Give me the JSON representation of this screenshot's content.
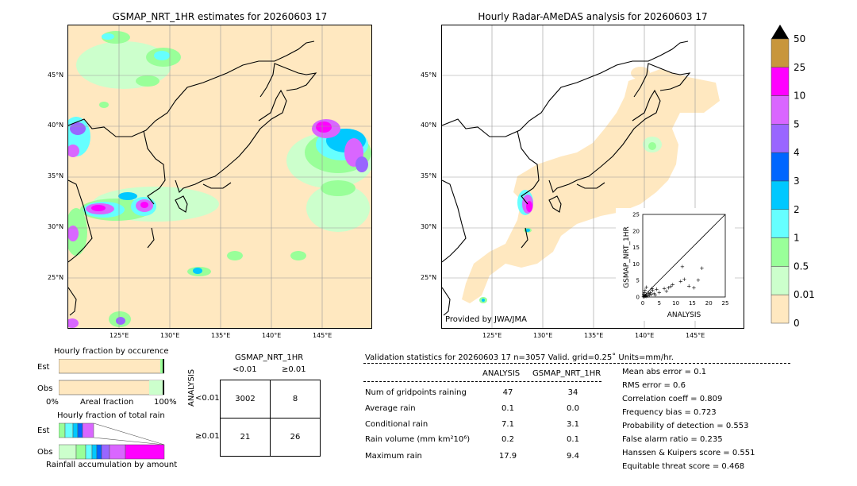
{
  "left_map": {
    "title": "GSMAP_NRT_1HR estimates for 20260603 17",
    "lat_labels": [
      "45°N",
      "40°N",
      "35°N",
      "30°N",
      "25°N"
    ],
    "lon_labels": [
      "125°E",
      "130°E",
      "135°E",
      "140°E",
      "145°E"
    ]
  },
  "right_map": {
    "title": "Hourly Radar-AMeDAS analysis for 20260603 17",
    "lat_labels": [
      "45°N",
      "40°N",
      "35°N",
      "30°N",
      "25°N"
    ],
    "lon_labels": [
      "125°E",
      "130°E",
      "135°E",
      "140°E",
      "145°E"
    ],
    "credit": "Provided by JWA/JMA"
  },
  "colorbar": {
    "labels": [
      "50",
      "25",
      "10",
      "5",
      "4",
      "3",
      "2",
      "1",
      "0.5",
      "0.01",
      "0"
    ],
    "colors": [
      "#c8963c",
      "#ff00ff",
      "#d966ff",
      "#9966ff",
      "#0066ff",
      "#00c8ff",
      "#66ffff",
      "#99ff99",
      "#ccffcc",
      "#ffe8c0"
    ],
    "extend_color": "#000000"
  },
  "chart_data": [
    {
      "type": "scatter",
      "title": "",
      "xlabel": "ANALYSIS",
      "ylabel": "GSMAP_NRT_1HR",
      "xlim": [
        0,
        25
      ],
      "ylim": [
        0,
        25
      ],
      "xticks": [
        "0",
        "5",
        "10",
        "15",
        "20",
        "25"
      ],
      "yticks": [
        "0",
        "5",
        "10",
        "15",
        "20",
        "25"
      ],
      "points": [
        [
          0.2,
          0.1
        ],
        [
          0.4,
          0.3
        ],
        [
          0.6,
          0.2
        ],
        [
          0.8,
          0.5
        ],
        [
          1.0,
          0.3
        ],
        [
          1.2,
          0.8
        ],
        [
          1.5,
          0.4
        ],
        [
          1.8,
          1.2
        ],
        [
          2.0,
          0.6
        ],
        [
          2.3,
          1.5
        ],
        [
          2.6,
          0.9
        ],
        [
          3.0,
          2.0
        ],
        [
          3.4,
          1.1
        ],
        [
          3.8,
          0.7
        ],
        [
          4.2,
          2.4
        ],
        [
          0.3,
          0.9
        ],
        [
          0.5,
          1.4
        ],
        [
          0.7,
          2.2
        ],
        [
          1.1,
          3.0
        ],
        [
          5.0,
          1.5
        ],
        [
          6.5,
          2.6
        ],
        [
          7.2,
          1.8
        ],
        [
          7.8,
          2.9
        ],
        [
          8.5,
          3.3
        ],
        [
          9.1,
          3.8
        ],
        [
          11.5,
          4.8
        ],
        [
          12.0,
          9.3
        ],
        [
          12.6,
          5.4
        ],
        [
          14.0,
          3.4
        ],
        [
          15.5,
          2.9
        ],
        [
          16.8,
          5.2
        ],
        [
          17.9,
          8.8
        ],
        [
          0.9,
          0.4
        ],
        [
          2.8,
          2.6
        ]
      ]
    },
    {
      "type": "bar",
      "title": "Hourly fraction by occurence",
      "categories": [
        "Est",
        "Obs"
      ],
      "xlabel": "Areal fraction",
      "xticks": [
        "0%",
        "100%"
      ]
    },
    {
      "type": "bar",
      "title": "Hourly fraction of total rain",
      "categories": [
        "Est",
        "Obs"
      ],
      "xlabel": "Rainfall accumulation by amount"
    }
  ],
  "contingency": {
    "col_title": "GSMAP_NRT_1HR",
    "col_lt": "<0.01",
    "col_ge": "≥0.01",
    "row_title": "ANALYSIS",
    "row_lt": "<0.01",
    "row_ge": "≥0.01",
    "cells": [
      "3002",
      "8",
      "21",
      "26"
    ]
  },
  "validation": {
    "header": "Validation statistics for 20260603 17  n=3057 Valid. grid=0.25˚ Units=mm/hr.",
    "col_analysis": "ANALYSIS",
    "col_gsmap": "GSMAP_NRT_1HR",
    "rows": [
      {
        "label": "Num of gridpoints raining",
        "analysis": "47",
        "gsmap": "34"
      },
      {
        "label": "Average rain",
        "analysis": "0.1",
        "gsmap": "0.0"
      },
      {
        "label": "Conditional rain",
        "analysis": "7.1",
        "gsmap": "3.1"
      },
      {
        "label": "Rain volume (mm km²10⁶)",
        "analysis": "0.2",
        "gsmap": "0.1"
      },
      {
        "label": "Maximum rain",
        "analysis": "17.9",
        "gsmap": "9.4"
      }
    ],
    "scores": [
      "Mean abs error =    0.1",
      "RMS error =    0.6",
      "Correlation coeff =  0.809",
      "Frequency bias =  0.723",
      "Probability of detection =  0.553",
      "False alarm ratio =  0.235",
      "Hanssen & Kuipers score =  0.551",
      "Equitable threat score =  0.468"
    ]
  }
}
